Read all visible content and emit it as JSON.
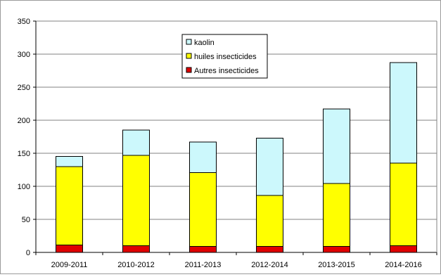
{
  "chart_data": {
    "type": "bar",
    "stacked": true,
    "categories": [
      "2009-2011",
      "2010-2012",
      "2011-2013",
      "2012-2014",
      "2013-2015",
      "2014-2016"
    ],
    "series": [
      {
        "name": "Autres insecticides",
        "values": [
          11,
          10,
          9,
          9,
          9,
          10
        ],
        "color": "#e00000"
      },
      {
        "name": "huiles insecticides",
        "values": [
          119,
          137,
          112,
          77,
          95,
          125
        ],
        "color": "#ffff00"
      },
      {
        "name": "kaolin",
        "values": [
          15,
          38,
          46,
          87,
          113,
          152
        ],
        "color": "#ccf8fc"
      }
    ],
    "legend_order": [
      "kaolin",
      "huiles insecticides",
      "Autres insecticides"
    ],
    "legend_placement": "top-center",
    "ylim": [
      0,
      350
    ],
    "yticks": [
      0,
      50,
      100,
      150,
      200,
      250,
      300,
      350
    ],
    "grid": true,
    "title": "",
    "xlabel": "",
    "ylabel": ""
  }
}
